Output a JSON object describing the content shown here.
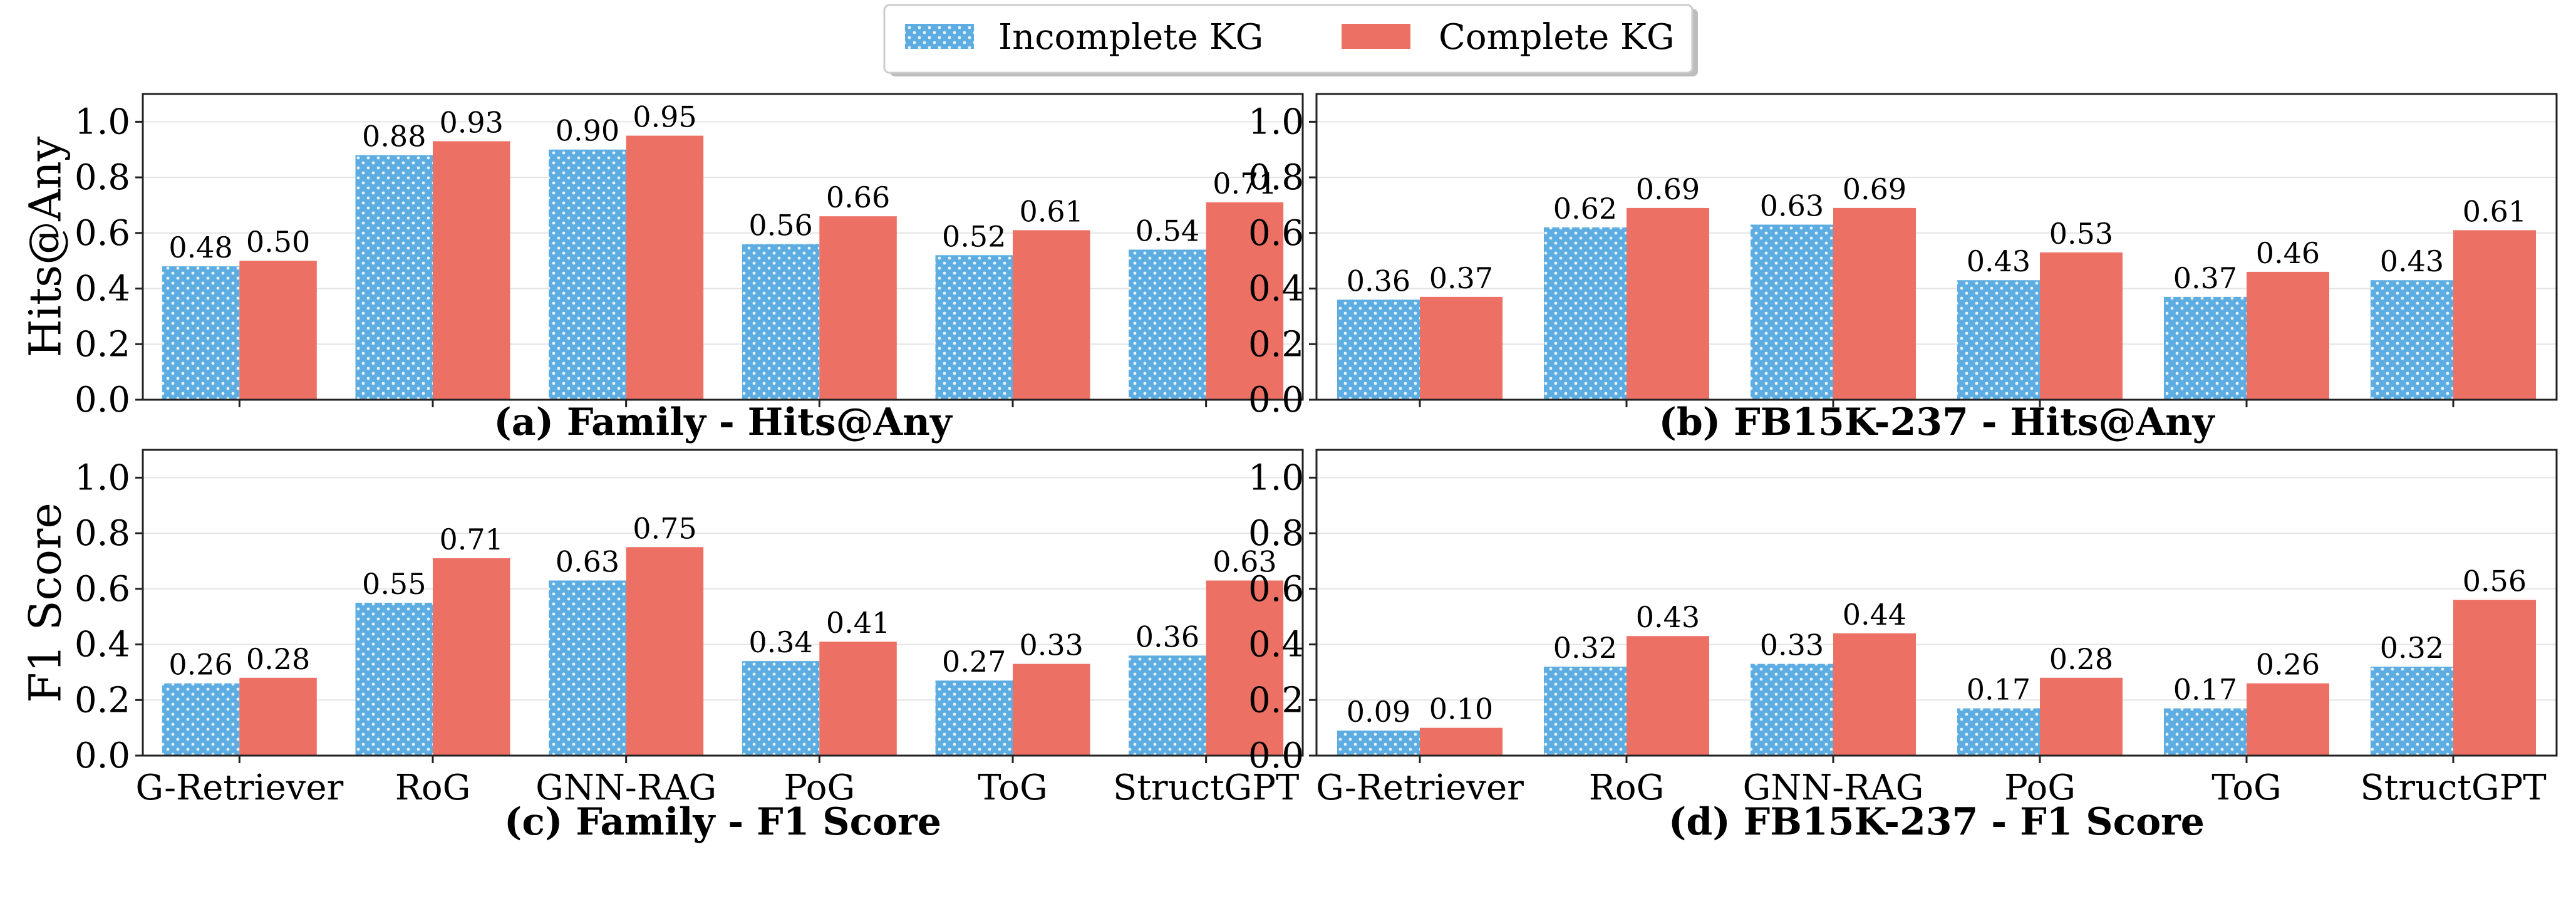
{
  "legend": [
    {
      "label": "Incomplete KG",
      "color": "#5dade2",
      "pattern": "dots"
    },
    {
      "label": "Complete KG",
      "color": "#ec7063",
      "pattern": "solid"
    }
  ],
  "chart_data": [
    {
      "type": "bar",
      "subtitle": "(a) Family - Hits@Any",
      "ylabel": "Hits@Any",
      "xlabel": "",
      "ylim": [
        0,
        1.1
      ],
      "yticks": [
        "0.0",
        "0.2",
        "0.4",
        "0.6",
        "0.8",
        "1.0"
      ],
      "grid": "horizontal",
      "categories": [
        "G-Retriever",
        "RoG",
        "GNN-RAG",
        "PoG",
        "ToG",
        "StructGPT"
      ],
      "show_category_labels": false,
      "series": [
        {
          "name": "Incomplete KG",
          "values": [
            0.48,
            0.88,
            0.9,
            0.56,
            0.52,
            0.54
          ],
          "labels": [
            "0.48",
            "0.88",
            "0.90",
            "0.56",
            "0.52",
            "0.54"
          ]
        },
        {
          "name": "Complete KG",
          "values": [
            0.5,
            0.93,
            0.95,
            0.66,
            0.61,
            0.71
          ],
          "labels": [
            "0.50",
            "0.93",
            "0.95",
            "0.66",
            "0.61",
            "0.71"
          ]
        }
      ]
    },
    {
      "type": "bar",
      "subtitle": "(b) FB15K-237 - Hits@Any",
      "ylabel": "",
      "xlabel": "",
      "ylim": [
        0,
        1.1
      ],
      "yticks": [
        "0.0",
        "0.2",
        "0.4",
        "0.6",
        "0.8",
        "1.0"
      ],
      "grid": "horizontal",
      "categories": [
        "G-Retriever",
        "RoG",
        "GNN-RAG",
        "PoG",
        "ToG",
        "StructGPT"
      ],
      "show_category_labels": false,
      "series": [
        {
          "name": "Incomplete KG",
          "values": [
            0.36,
            0.62,
            0.63,
            0.43,
            0.37,
            0.43
          ],
          "labels": [
            "0.36",
            "0.62",
            "0.63",
            "0.43",
            "0.37",
            "0.43"
          ]
        },
        {
          "name": "Complete KG",
          "values": [
            0.37,
            0.69,
            0.69,
            0.53,
            0.46,
            0.61
          ],
          "labels": [
            "0.37",
            "0.69",
            "0.69",
            "0.53",
            "0.46",
            "0.61"
          ]
        }
      ]
    },
    {
      "type": "bar",
      "subtitle": "(c) Family - F1 Score",
      "ylabel": "F1 Score",
      "xlabel": "",
      "ylim": [
        0,
        1.1
      ],
      "yticks": [
        "0.0",
        "0.2",
        "0.4",
        "0.6",
        "0.8",
        "1.0"
      ],
      "grid": "horizontal",
      "categories": [
        "G-Retriever",
        "RoG",
        "GNN-RAG",
        "PoG",
        "ToG",
        "StructGPT"
      ],
      "show_category_labels": true,
      "series": [
        {
          "name": "Incomplete KG",
          "values": [
            0.26,
            0.55,
            0.63,
            0.34,
            0.27,
            0.36
          ],
          "labels": [
            "0.26",
            "0.55",
            "0.63",
            "0.34",
            "0.27",
            "0.36"
          ]
        },
        {
          "name": "Complete KG",
          "values": [
            0.28,
            0.71,
            0.75,
            0.41,
            0.33,
            0.63
          ],
          "labels": [
            "0.28",
            "0.71",
            "0.75",
            "0.41",
            "0.33",
            "0.63"
          ]
        }
      ]
    },
    {
      "type": "bar",
      "subtitle": "(d) FB15K-237 - F1 Score",
      "ylabel": "",
      "xlabel": "",
      "ylim": [
        0,
        1.1
      ],
      "yticks": [
        "0.0",
        "0.2",
        "0.4",
        "0.6",
        "0.8",
        "1.0"
      ],
      "grid": "horizontal",
      "categories": [
        "G-Retriever",
        "RoG",
        "GNN-RAG",
        "PoG",
        "ToG",
        "StructGPT"
      ],
      "show_category_labels": true,
      "series": [
        {
          "name": "Incomplete KG",
          "values": [
            0.09,
            0.32,
            0.33,
            0.17,
            0.17,
            0.32
          ],
          "labels": [
            "0.09",
            "0.32",
            "0.33",
            "0.17",
            "0.17",
            "0.32"
          ]
        },
        {
          "name": "Complete KG",
          "values": [
            0.1,
            0.43,
            0.44,
            0.28,
            0.26,
            0.56
          ],
          "labels": [
            "0.10",
            "0.43",
            "0.44",
            "0.28",
            "0.26",
            "0.56"
          ]
        }
      ]
    }
  ]
}
